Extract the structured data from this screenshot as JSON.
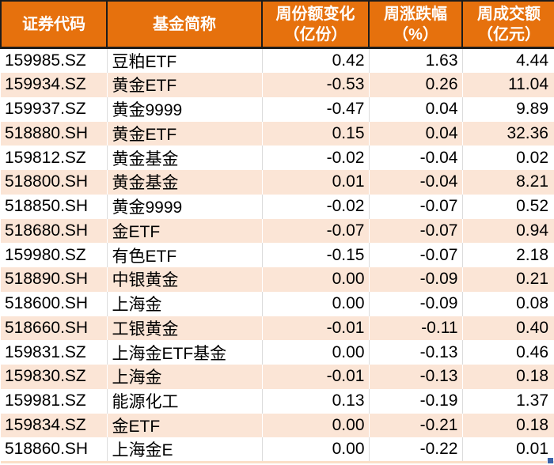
{
  "chart_data": {
    "type": "table",
    "columns": [
      {
        "key": "code",
        "label": "证券代码"
      },
      {
        "key": "name",
        "label": "基金简称"
      },
      {
        "key": "share_change",
        "label": "周份额变化",
        "label2": "（亿份）"
      },
      {
        "key": "pct_change",
        "label": "周涨跌幅",
        "label2": "（%）"
      },
      {
        "key": "turnover",
        "label": "周成交额",
        "label2": "（亿元）"
      }
    ],
    "rows": [
      [
        "159985.SZ",
        "豆粕ETF",
        "0.42",
        "1.63",
        "4.44"
      ],
      [
        "159934.SZ",
        "黄金ETF",
        "-0.53",
        "0.26",
        "11.04"
      ],
      [
        "159937.SZ",
        "黄金9999",
        "-0.47",
        "0.04",
        "9.89"
      ],
      [
        "518880.SH",
        "黄金ETF",
        "0.15",
        "0.04",
        "32.36"
      ],
      [
        "159812.SZ",
        "黄金基金",
        "-0.02",
        "-0.04",
        "0.02"
      ],
      [
        "518800.SH",
        "黄金基金",
        "0.01",
        "-0.04",
        "8.21"
      ],
      [
        "518850.SH",
        "黄金9999",
        "-0.02",
        "-0.07",
        "0.52"
      ],
      [
        "518680.SH",
        "金ETF",
        "-0.07",
        "-0.07",
        "0.94"
      ],
      [
        "159980.SZ",
        "有色ETF",
        "-0.15",
        "-0.07",
        "2.18"
      ],
      [
        "518890.SH",
        "中银黄金",
        "0.00",
        "-0.09",
        "0.21"
      ],
      [
        "518600.SH",
        "上海金",
        "0.00",
        "-0.09",
        "0.08"
      ],
      [
        "518660.SH",
        "工银黄金",
        "-0.01",
        "-0.11",
        "0.40"
      ],
      [
        "159831.SZ",
        "上海金ETF基金",
        "0.00",
        "-0.13",
        "0.46"
      ],
      [
        "159830.SZ",
        "上海金",
        "-0.01",
        "-0.13",
        "0.18"
      ],
      [
        "159981.SZ",
        "能源化工",
        "0.13",
        "-0.19",
        "1.37"
      ],
      [
        "159834.SZ",
        "金ETF",
        "0.00",
        "-0.21",
        "0.18"
      ],
      [
        "518860.SH",
        "上海金E",
        "0.00",
        "-0.22",
        "0.01"
      ]
    ]
  },
  "style": {
    "colors": {
      "header-bg": "#E6710D",
      "header-text": "#FFFFFF",
      "header-border": "#1C1C1C",
      "row-bg": "#FFFFFF",
      "row-alt-bg": "#FBE5D6",
      "grid-line": "#DCDCDC",
      "table-bottom-border": "#FBDFC8",
      "handle-color": "#3B62A8"
    }
  }
}
